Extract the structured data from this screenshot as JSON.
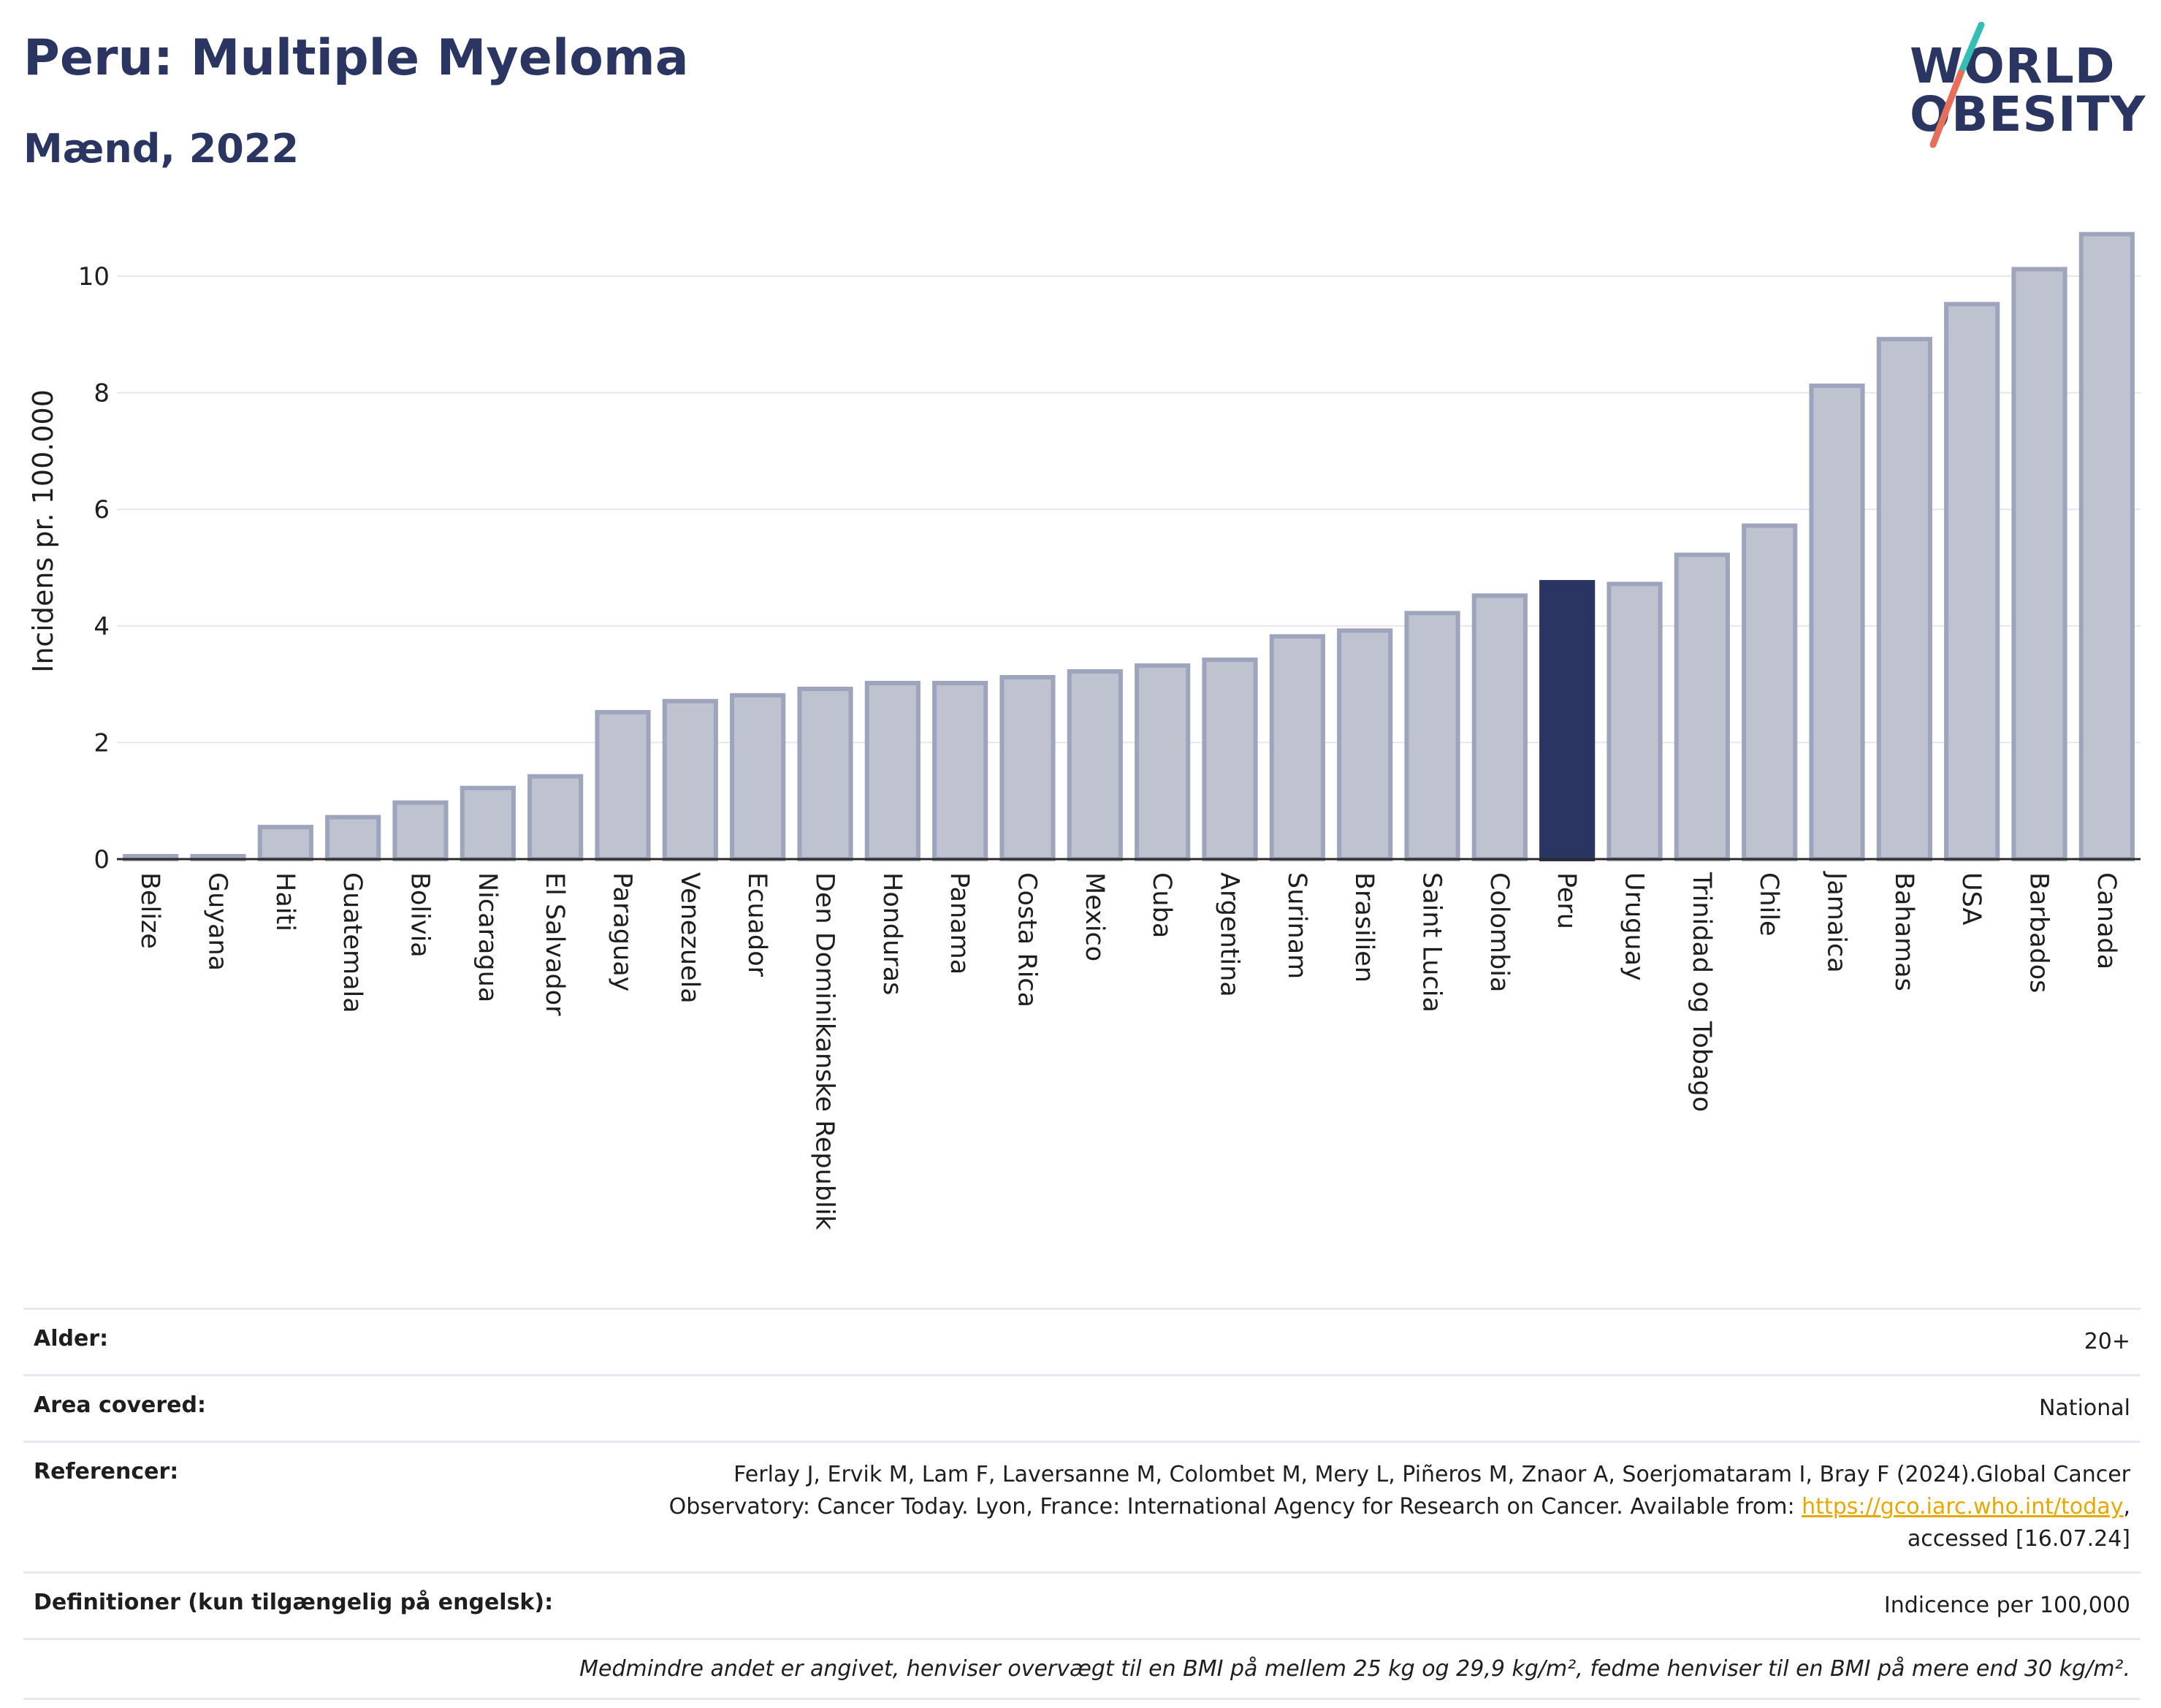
{
  "header": {
    "title": "Peru: Multiple Myeloma",
    "subtitle": "Mænd, 2022",
    "logo_line1": "WORLD",
    "logo_line2": "OBESITY"
  },
  "colors": {
    "bar": "#bfc3d0",
    "bar_border": "#9ea4bb",
    "highlight": "#2b3562",
    "grid": "#e3e6ee",
    "logo_teal": "#35bfb4",
    "logo_coral": "#e76f5a"
  },
  "chart_data": {
    "type": "bar",
    "ylabel": "Incidens pr. 100.000",
    "xlabel": "",
    "ylim": [
      0,
      11
    ],
    "yticks": [
      0,
      2,
      4,
      6,
      8,
      10
    ],
    "grid": true,
    "highlight": "Peru",
    "categories": [
      "Belize",
      "Guyana",
      "Haiti",
      "Guatemala",
      "Bolivia",
      "Nicaragua",
      "El Salvador",
      "Paraguay",
      "Venezuela",
      "Ecuador",
      "Den Dominikanske Republik",
      "Honduras",
      "Panama",
      "Costa Rica",
      "Mexico",
      "Cuba",
      "Argentina",
      "Surinam",
      "Brasilien",
      "Saint Lucia",
      "Colombia",
      "Peru",
      "Uruguay",
      "Trinidad og Tobago",
      "Chile",
      "Jamaica",
      "Bahamas",
      "USA",
      "Barbados",
      "Canada"
    ],
    "values": [
      0.05,
      0.05,
      0.55,
      0.72,
      0.97,
      1.22,
      1.42,
      2.52,
      2.71,
      2.81,
      2.92,
      3.02,
      3.02,
      3.12,
      3.22,
      3.32,
      3.42,
      3.82,
      3.92,
      4.22,
      4.52,
      4.75,
      4.72,
      5.22,
      5.72,
      8.12,
      8.92,
      9.52,
      10.12,
      10.72
    ]
  },
  "info": {
    "rows": [
      {
        "label": "Alder:",
        "value": "20+"
      },
      {
        "label": "Area covered:",
        "value": "National"
      },
      {
        "label": "Referencer:",
        "value_line1": "Ferlay J, Ervik M, Lam F, Laversanne M, Colombet M, Mery L, Piñeros M, Znaor A, Soerjomataram I, Bray F (2024).Global Cancer",
        "value_line2_pre": "Observatory: Cancer Today. Lyon, France: International Agency for Research on Cancer. Available from: ",
        "value_link": "https://gco.iarc.who.int/today",
        "value_line2_post": ",",
        "value_line3": "accessed [16.07.24]"
      },
      {
        "label": "Definitioner (kun tilgængelig på engelsk):",
        "value": "Indicence per 100,000"
      }
    ],
    "note": "Medmindre andet er angivet, henviser overvægt til en BMI på mellem 25 kg og 29,9 kg/m², fedme henviser til en BMI på mere end 30 kg/m²."
  }
}
